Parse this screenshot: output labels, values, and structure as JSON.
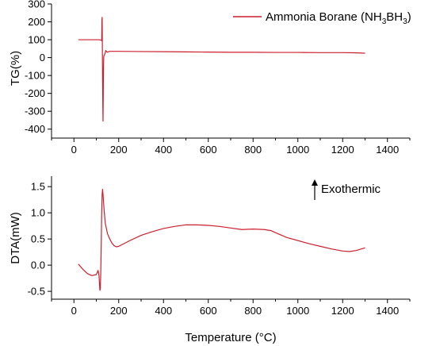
{
  "chart_data": [
    {
      "type": "line",
      "ylabel": "TG(%)",
      "xlim": [
        -100,
        1500
      ],
      "ylim": [
        -450,
        300
      ],
      "x_ticks": [
        0,
        200,
        400,
        600,
        800,
        1000,
        1200,
        1400
      ],
      "y_ticks": [
        300,
        200,
        100,
        0,
        -100,
        -200,
        -300,
        -400
      ],
      "legend": {
        "position": "top-right",
        "label_main": "Ammonia Borane (NH",
        "sub1": "3",
        "label_mid": "BH",
        "sub2": "3",
        "label_end": ")"
      },
      "series": [
        {
          "name": "Ammonia Borane (NH3BH3)",
          "color": "#cc1f2e",
          "x": [
            20,
            80,
            110,
            118,
            122,
            124,
            125,
            126,
            127,
            128,
            129,
            130,
            131,
            132,
            133,
            134,
            136,
            138,
            142,
            148,
            160,
            200,
            300,
            400,
            500,
            600,
            700,
            800,
            900,
            1000,
            1100,
            1200,
            1250,
            1300
          ],
          "y": [
            100,
            100,
            100,
            99,
            97,
            95,
            210,
            225,
            60,
            -120,
            -260,
            -355,
            -200,
            -60,
            0,
            10,
            15,
            20,
            40,
            30,
            35,
            35,
            34,
            33,
            32,
            31,
            30,
            30,
            29,
            29,
            28,
            28,
            27,
            25
          ]
        }
      ]
    },
    {
      "type": "line",
      "xlabel": "Temperature (°C)",
      "ylabel": "DTA(mW)",
      "xlim": [
        -100,
        1500
      ],
      "ylim": [
        -0.65,
        1.7
      ],
      "x_ticks": [
        0,
        200,
        400,
        600,
        800,
        1000,
        1200,
        1400
      ],
      "y_ticks": [
        1.5,
        1.0,
        0.5,
        0.0,
        -0.5
      ],
      "y_tick_labels": [
        "1.5",
        "1.0",
        "0.5",
        "0.0",
        "-0.5"
      ],
      "annotation": "Exothermic",
      "series": [
        {
          "color": "#cc1f2e",
          "x": [
            20,
            40,
            60,
            80,
            100,
            108,
            112,
            116,
            118,
            120,
            122,
            124,
            126,
            128,
            130,
            134,
            140,
            150,
            160,
            170,
            180,
            190,
            200,
            250,
            300,
            350,
            400,
            450,
            500,
            550,
            600,
            650,
            700,
            750,
            800,
            850,
            880,
            900,
            950,
            1000,
            1050,
            1100,
            1150,
            1200,
            1230,
            1260,
            1300
          ],
          "y": [
            0.02,
            -0.08,
            -0.16,
            -0.2,
            -0.18,
            -0.1,
            -0.2,
            -0.48,
            -0.45,
            -0.1,
            0.4,
            1.0,
            1.35,
            1.45,
            1.35,
            1.1,
            0.8,
            0.6,
            0.5,
            0.42,
            0.37,
            0.35,
            0.36,
            0.47,
            0.57,
            0.64,
            0.7,
            0.74,
            0.77,
            0.77,
            0.76,
            0.74,
            0.71,
            0.68,
            0.69,
            0.68,
            0.66,
            0.62,
            0.53,
            0.47,
            0.41,
            0.36,
            0.31,
            0.27,
            0.26,
            0.28,
            0.33
          ]
        }
      ]
    }
  ]
}
